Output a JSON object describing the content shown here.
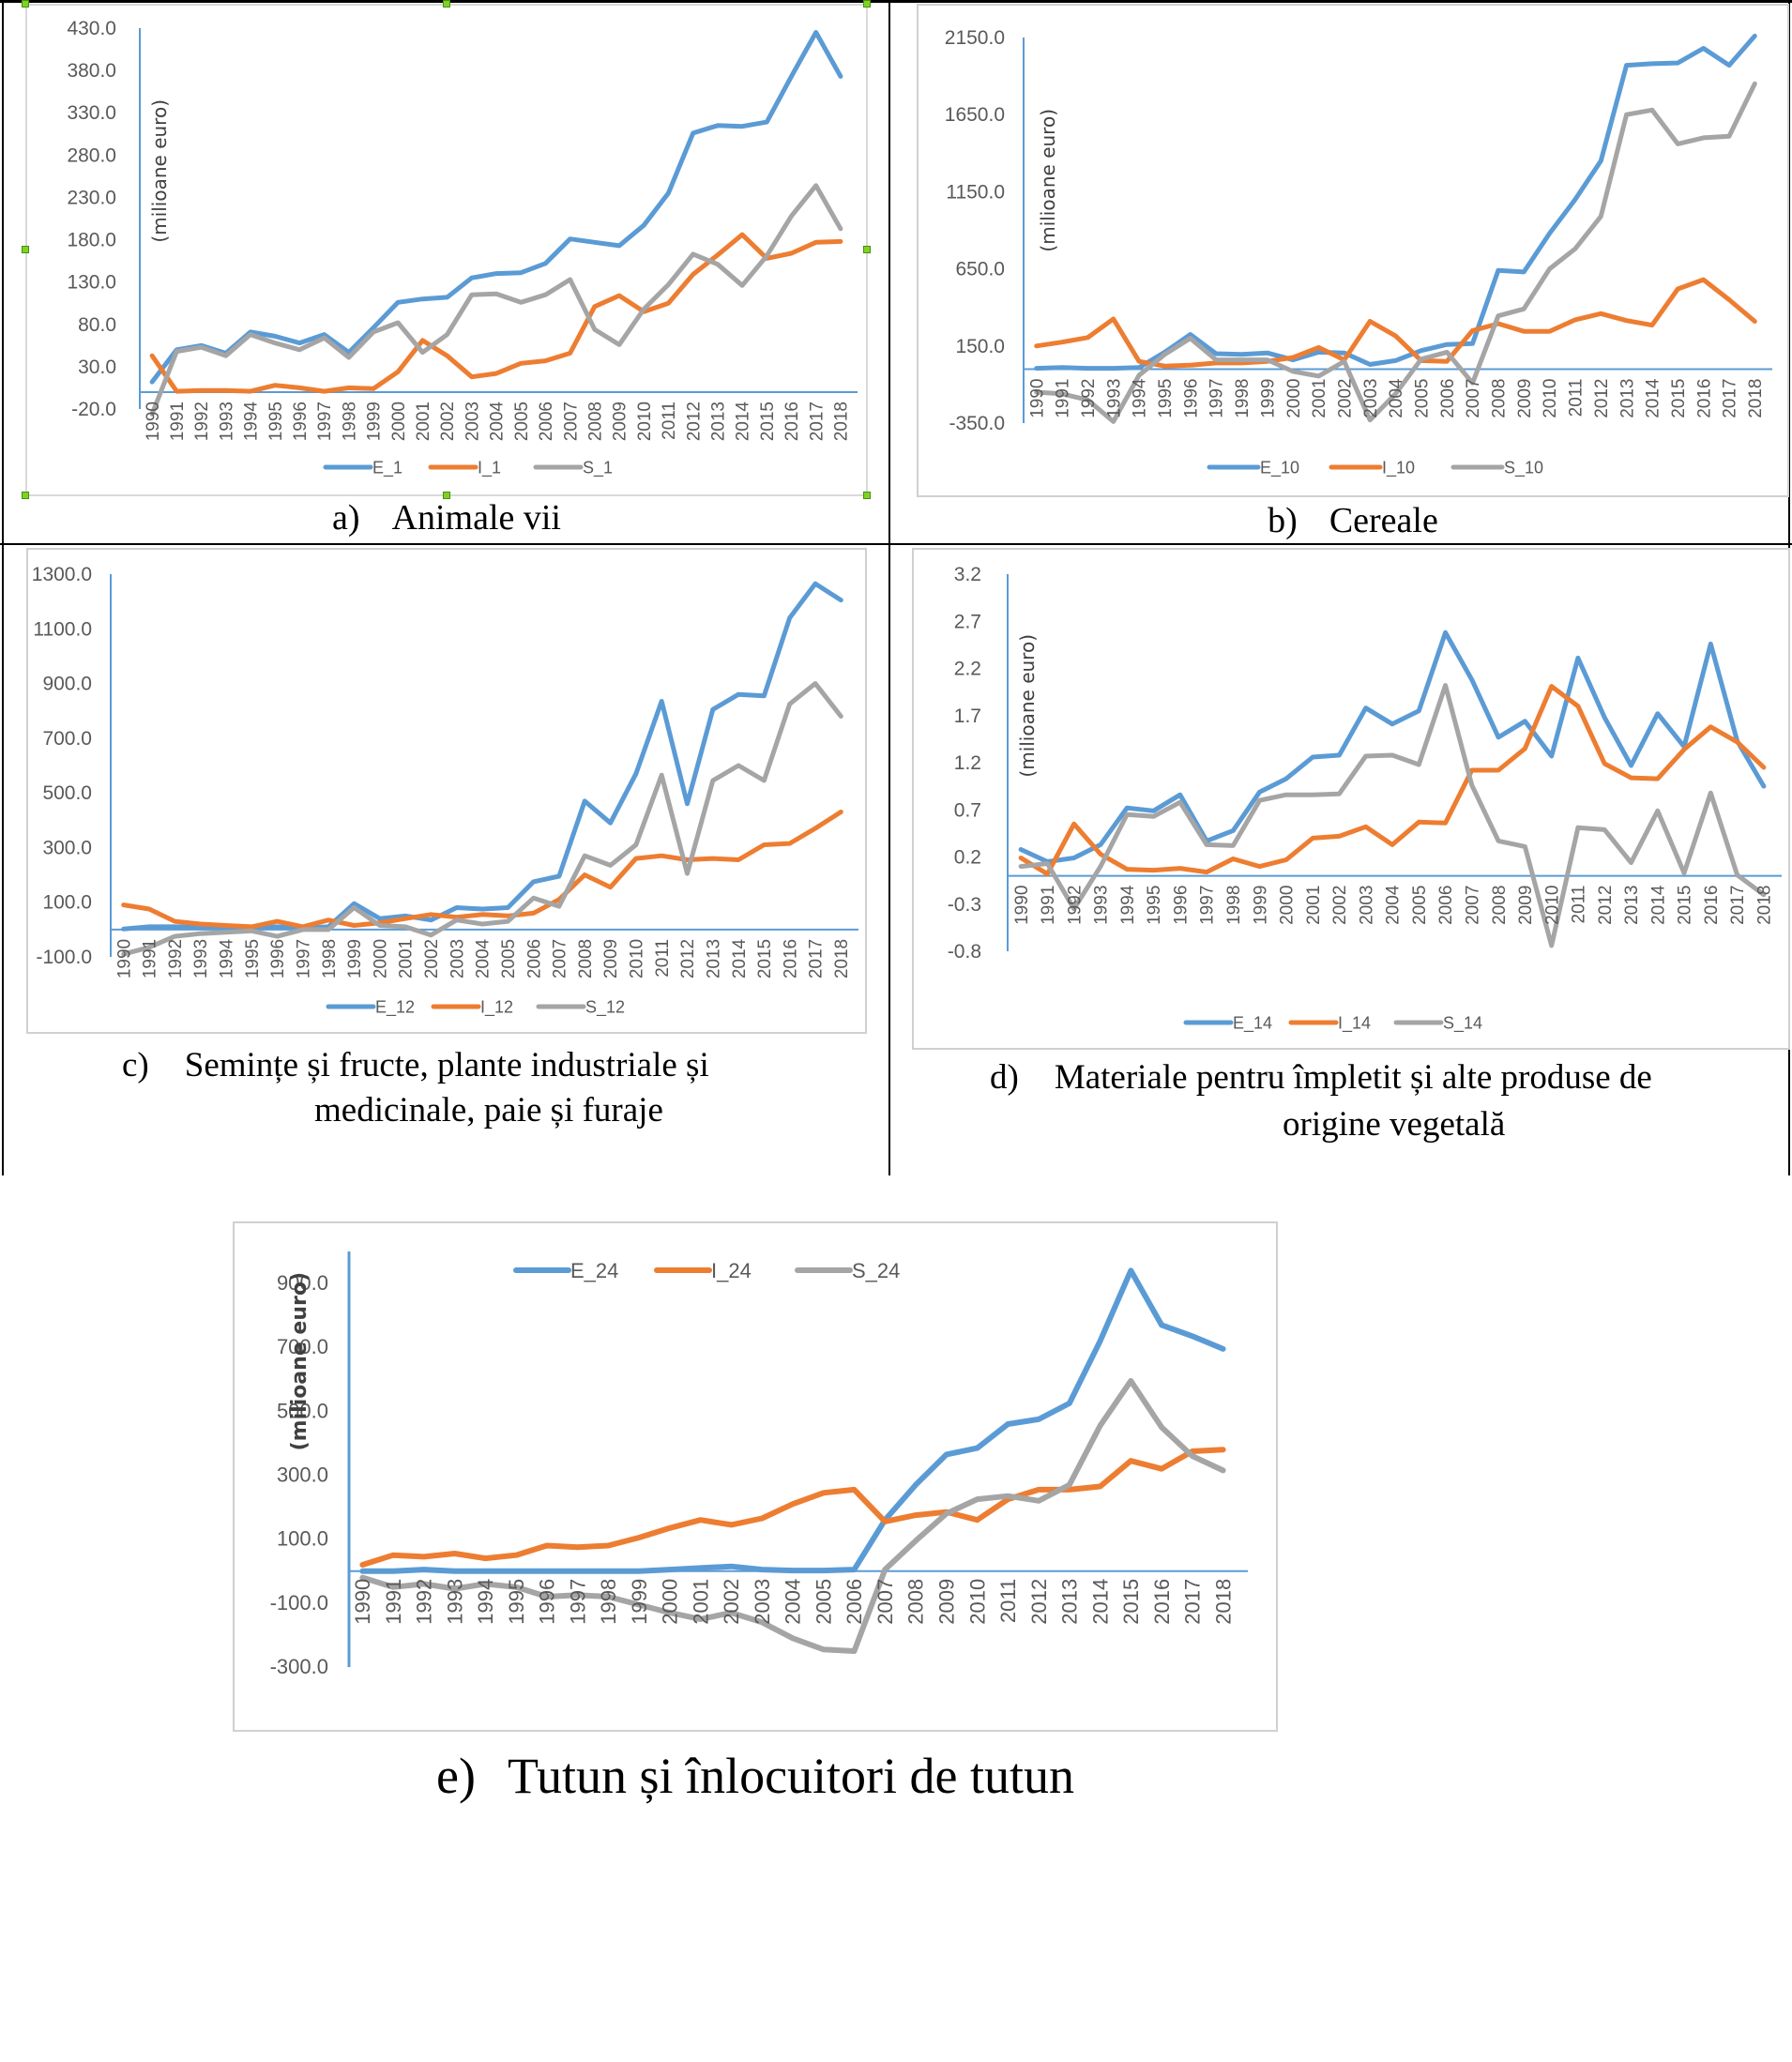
{
  "figure": {
    "captions": {
      "a": {
        "letter": "a)",
        "text": "Animale vii"
      },
      "b": {
        "letter": "b)",
        "text": "Cereale"
      },
      "c": {
        "letter": "c)",
        "line1": "Semințe și fructe, plante industriale și",
        "line2": "medicinale, paie și furaje"
      },
      "d": {
        "letter": "d)",
        "line1": "Materiale pentru împletit și alte produse de",
        "line2": "origine vegetală"
      },
      "e": {
        "letter": "e)",
        "text": "Tutun și înlocuitori de tutun"
      }
    }
  },
  "colors": {
    "export": "#5b9bd5",
    "import": "#ed7d31",
    "balance": "#a5a5a5",
    "axis": "#5b9bd5"
  },
  "chart_data": [
    {
      "id": "a",
      "type": "line",
      "title": "Animale vii",
      "ylabel": "(milioane euro)",
      "xlabel": "",
      "x": [
        "1990",
        "1991",
        "1992",
        "1993",
        "1994",
        "1995",
        "1996",
        "1997",
        "1998",
        "1999",
        "2000",
        "2001",
        "2002",
        "2003",
        "2004",
        "2005",
        "2006",
        "2007",
        "2008",
        "2009",
        "2010",
        "2011",
        "2012",
        "2013",
        "2014",
        "2015",
        "2016",
        "2017",
        "2018"
      ],
      "ylim": [
        -20,
        430
      ],
      "yticks": [
        "430.0",
        "380.0",
        "330.0",
        "280.0",
        "230.0",
        "180.0",
        "130.0",
        "80.0",
        "30.0",
        "-20.0"
      ],
      "ytick_values": [
        430,
        380,
        330,
        280,
        230,
        180,
        130,
        80,
        30,
        -20
      ],
      "grid": false,
      "legend": "bottom",
      "series": [
        {
          "name": "E_1",
          "values": [
            12,
            50,
            55,
            46,
            71,
            66,
            58,
            68,
            47,
            76,
            106,
            110,
            112,
            135,
            140,
            141,
            152,
            181,
            177,
            173,
            197,
            235,
            306,
            315,
            314,
            319,
            373,
            425,
            373
          ]
        },
        {
          "name": "I_1",
          "values": [
            43,
            1,
            2,
            2,
            1,
            8,
            5,
            1,
            5,
            4,
            24,
            61,
            43,
            18,
            22,
            34,
            37,
            46,
            101,
            114,
            95,
            105,
            139,
            162,
            186,
            158,
            164,
            177,
            178
          ]
        },
        {
          "name": "S_1",
          "values": [
            -26,
            48,
            53,
            43,
            68,
            58,
            50,
            64,
            41,
            71,
            82,
            47,
            68,
            115,
            116,
            106,
            115,
            133,
            74,
            56,
            98,
            127,
            163,
            151,
            126,
            161,
            208,
            244,
            193
          ]
        }
      ]
    },
    {
      "id": "b",
      "type": "line",
      "title": "Cereale",
      "ylabel": "(milioane euro)",
      "xlabel": "",
      "x": [
        "1990",
        "1991",
        "1992",
        "1993",
        "1994",
        "1995",
        "1996",
        "1997",
        "1998",
        "1999",
        "2000",
        "2001",
        "2002",
        "2003",
        "2004",
        "2005",
        "2006",
        "2007",
        "2008",
        "2009",
        "2010",
        "2011",
        "2012",
        "2013",
        "2014",
        "2015",
        "2016",
        "2017",
        "2018"
      ],
      "ylim": [
        -350,
        2150
      ],
      "yticks": [
        "2150.0",
        "1650.0",
        "1150.0",
        "650.0",
        "150.0",
        "-350.0"
      ],
      "ytick_values": [
        2150,
        1650,
        1150,
        650,
        150,
        -350
      ],
      "grid": false,
      "legend": "bottom",
      "series": [
        {
          "name": "E_10",
          "values": [
            5,
            10,
            5,
            5,
            10,
            110,
            225,
            100,
            95,
            105,
            60,
            110,
            105,
            30,
            55,
            120,
            160,
            165,
            640,
            630,
            880,
            1100,
            1350,
            1970,
            1980,
            1985,
            2080,
            1970,
            2160
          ]
        },
        {
          "name": "I_10",
          "values": [
            150,
            175,
            205,
            325,
            50,
            20,
            25,
            40,
            40,
            50,
            75,
            140,
            60,
            310,
            215,
            55,
            50,
            250,
            295,
            245,
            245,
            320,
            360,
            315,
            285,
            520,
            580,
            450,
            310
          ]
        },
        {
          "name": "S_10",
          "values": [
            -150,
            -160,
            -200,
            -340,
            -40,
            95,
            200,
            60,
            60,
            60,
            -15,
            -45,
            50,
            -330,
            -160,
            65,
            110,
            -90,
            345,
            390,
            650,
            780,
            990,
            1650,
            1680,
            1460,
            1500,
            1510,
            1850
          ]
        }
      ]
    },
    {
      "id": "c",
      "type": "line",
      "title": "Semințe și fructe, plante industriale și medicinale, paie și furaje",
      "ylabel": "",
      "xlabel": "",
      "x": [
        "1990",
        "1991",
        "1992",
        "1993",
        "1994",
        "1995",
        "1996",
        "1997",
        "1998",
        "1999",
        "2000",
        "2001",
        "2002",
        "2003",
        "2004",
        "2005",
        "2006",
        "2007",
        "2008",
        "2009",
        "2010",
        "2011",
        "2012",
        "2013",
        "2014",
        "2015",
        "2016",
        "2017",
        "2018"
      ],
      "ylim": [
        -100,
        1300
      ],
      "yticks": [
        "1300.0",
        "1100.0",
        "900.0",
        "700.0",
        "500.0",
        "300.0",
        "100.0",
        "-100.0"
      ],
      "ytick_values": [
        1300,
        1100,
        900,
        700,
        500,
        300,
        100,
        -100
      ],
      "grid": false,
      "legend": "bottom",
      "series": [
        {
          "name": "E_12",
          "values": [
            2,
            10,
            10,
            8,
            5,
            5,
            10,
            5,
            10,
            95,
            40,
            50,
            35,
            80,
            75,
            80,
            175,
            195,
            470,
            390,
            570,
            835,
            460,
            805,
            860,
            855,
            1140,
            1265,
            1205
          ]
        },
        {
          "name": "I_12",
          "values": [
            90,
            75,
            30,
            20,
            15,
            10,
            30,
            10,
            35,
            15,
            25,
            40,
            55,
            45,
            55,
            50,
            60,
            110,
            200,
            155,
            260,
            270,
            255,
            260,
            255,
            310,
            315,
            370,
            430
          ]
        },
        {
          "name": "S_12",
          "values": [
            -90,
            -65,
            -25,
            -15,
            -10,
            -5,
            -25,
            0,
            0,
            80,
            15,
            10,
            -20,
            35,
            20,
            30,
            115,
            85,
            270,
            235,
            310,
            565,
            205,
            545,
            600,
            545,
            825,
            900,
            780
          ]
        }
      ]
    },
    {
      "id": "d",
      "type": "line",
      "title": "Materiale pentru împletit și alte produse de origine vegetală",
      "ylabel": "(milioane euro)",
      "xlabel": "",
      "x": [
        "1990",
        "1991",
        "1992",
        "1993",
        "1994",
        "1995",
        "1996",
        "1997",
        "1998",
        "1999",
        "2000",
        "2001",
        "2002",
        "2003",
        "2004",
        "2005",
        "2006",
        "2007",
        "2008",
        "2009",
        "2010",
        "2011",
        "2012",
        "2013",
        "2014",
        "2015",
        "2016",
        "2017",
        "2018"
      ],
      "ylim": [
        -0.8,
        3.2
      ],
      "yticks": [
        "3.2",
        "2.7",
        "2.2",
        "1.7",
        "1.2",
        "0.7",
        "0.2",
        "-0.3",
        "-0.8"
      ],
      "ytick_values": [
        3.2,
        2.7,
        2.2,
        1.7,
        1.2,
        0.7,
        0.2,
        -0.3,
        -0.8
      ],
      "grid": false,
      "legend": "bottom",
      "series": [
        {
          "name": "E_14",
          "values": [
            0.28,
            0.15,
            0.19,
            0.33,
            0.72,
            0.69,
            0.86,
            0.37,
            0.48,
            0.89,
            1.03,
            1.26,
            1.28,
            1.78,
            1.61,
            1.75,
            2.58,
            2.08,
            1.47,
            1.64,
            1.27,
            2.31,
            1.68,
            1.17,
            1.72,
            1.37,
            2.46,
            1.43,
            0.95
          ]
        },
        {
          "name": "I_14",
          "values": [
            0.19,
            0.02,
            0.55,
            0.23,
            0.07,
            0.06,
            0.08,
            0.04,
            0.18,
            0.1,
            0.17,
            0.4,
            0.42,
            0.52,
            0.33,
            0.57,
            0.56,
            1.12,
            1.12,
            1.35,
            2.01,
            1.8,
            1.19,
            1.04,
            1.03,
            1.34,
            1.58,
            1.42,
            1.15
          ]
        },
        {
          "name": "S_14",
          "values": [
            0.1,
            0.13,
            -0.35,
            0.1,
            0.65,
            0.63,
            0.78,
            0.33,
            0.32,
            0.8,
            0.86,
            0.86,
            0.87,
            1.27,
            1.28,
            1.18,
            2.02,
            0.96,
            0.37,
            0.31,
            -0.74,
            0.51,
            0.49,
            0.14,
            0.69,
            0.03,
            0.88,
            0.01,
            -0.2
          ]
        }
      ]
    },
    {
      "id": "e",
      "type": "line",
      "title": "Tutun și înlocuitori de tutun",
      "ylabel": "(milioane euro)",
      "xlabel": "",
      "x": [
        "1990",
        "1991",
        "1992",
        "1993",
        "1994",
        "1995",
        "1996",
        "1997",
        "1998",
        "1999",
        "2000",
        "2001",
        "2002",
        "2003",
        "2004",
        "2005",
        "2006",
        "2007",
        "2008",
        "2009",
        "2010",
        "2011",
        "2012",
        "2013",
        "2014",
        "2015",
        "2016",
        "2017",
        "2018"
      ],
      "ylim": [
        -300,
        1000
      ],
      "yticks": [
        "900.0",
        "700.0",
        "500.0",
        "300.0",
        "100.0",
        "-100.0",
        "-300.0"
      ],
      "ytick_values": [
        900,
        700,
        500,
        300,
        100,
        -100,
        -300
      ],
      "grid": false,
      "legend": "top",
      "series": [
        {
          "name": "E_24",
          "values": [
            0,
            0,
            5,
            0,
            0,
            0,
            0,
            0,
            0,
            0,
            5,
            10,
            15,
            5,
            2,
            2,
            5,
            160,
            270,
            365,
            385,
            460,
            475,
            525,
            720,
            940,
            770,
            735,
            695
          ]
        },
        {
          "name": "I_24",
          "values": [
            20,
            50,
            45,
            55,
            40,
            50,
            80,
            75,
            80,
            105,
            135,
            160,
            145,
            165,
            210,
            245,
            255,
            155,
            175,
            185,
            160,
            225,
            255,
            255,
            265,
            345,
            320,
            375,
            380
          ]
        },
        {
          "name": "S_24",
          "values": [
            -20,
            -50,
            -40,
            -55,
            -40,
            -50,
            -80,
            -75,
            -80,
            -105,
            -130,
            -150,
            -130,
            -160,
            -210,
            -245,
            -250,
            5,
            95,
            180,
            225,
            235,
            220,
            270,
            455,
            595,
            450,
            360,
            315
          ]
        }
      ]
    }
  ]
}
